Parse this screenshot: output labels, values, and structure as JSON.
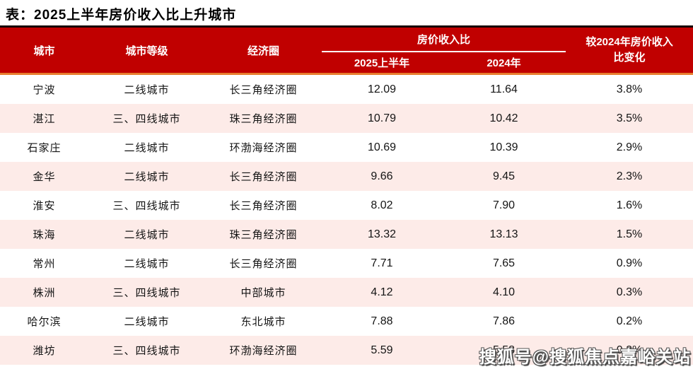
{
  "page_title": "表：2025上半年房价收入比上升城市",
  "watermark_text": "搜狐号@搜狐焦点嘉峪关站",
  "colors": {
    "header_bg": "#c00000",
    "header_text": "#ffffff",
    "header_top_border": "#170202",
    "header_bottom_border": "#e87e2e",
    "group_underline": "#ffffff",
    "zebra_pink": "#fdebe8",
    "body_text": "#141414"
  },
  "chart_data": {
    "type": "table",
    "title": "表：2025上半年房价收入比上升城市",
    "header": {
      "city": "城市",
      "tier": "城市等级",
      "region": "经济圈",
      "ratio_group": "房价收入比",
      "sub_2025h1": "2025上半年",
      "sub_2024": "2024年",
      "change_line1": "较2024年房价收入",
      "change_line2": "比变化"
    },
    "columns": [
      "城市",
      "城市等级",
      "经济圈",
      "房价收入比-2025上半年",
      "房价收入比-2024年",
      "较2024年房价收入比变化"
    ],
    "rows": [
      {
        "city": "宁波",
        "tier": "二线城市",
        "region": "长三角经济圈",
        "h1_2025": "12.09",
        "y2024": "11.64",
        "change": "3.8%"
      },
      {
        "city": "湛江",
        "tier": "三、四线城市",
        "region": "珠三角经济圈",
        "h1_2025": "10.79",
        "y2024": "10.42",
        "change": "3.5%"
      },
      {
        "city": "石家庄",
        "tier": "二线城市",
        "region": "环渤海经济圈",
        "h1_2025": "10.69",
        "y2024": "10.39",
        "change": "2.9%"
      },
      {
        "city": "金华",
        "tier": "二线城市",
        "region": "长三角经济圈",
        "h1_2025": "9.66",
        "y2024": "9.45",
        "change": "2.3%"
      },
      {
        "city": "淮安",
        "tier": "三、四线城市",
        "region": "长三角经济圈",
        "h1_2025": "8.02",
        "y2024": "7.90",
        "change": "1.6%"
      },
      {
        "city": "珠海",
        "tier": "二线城市",
        "region": "珠三角经济圈",
        "h1_2025": "13.32",
        "y2024": "13.13",
        "change": "1.5%"
      },
      {
        "city": "常州",
        "tier": "二线城市",
        "region": "长三角经济圈",
        "h1_2025": "7.71",
        "y2024": "7.65",
        "change": "0.9%"
      },
      {
        "city": "株洲",
        "tier": "三、四线城市",
        "region": "中部城市",
        "h1_2025": "4.12",
        "y2024": "4.10",
        "change": "0.3%"
      },
      {
        "city": "哈尔滨",
        "tier": "二线城市",
        "region": "东北城市",
        "h1_2025": "7.88",
        "y2024": "7.86",
        "change": "0.2%"
      },
      {
        "city": "潍坊",
        "tier": "三、四线城市",
        "region": "环渤海经济圈",
        "h1_2025": "5.59",
        "y2024": "5.58",
        "change": "0.2%"
      }
    ]
  }
}
